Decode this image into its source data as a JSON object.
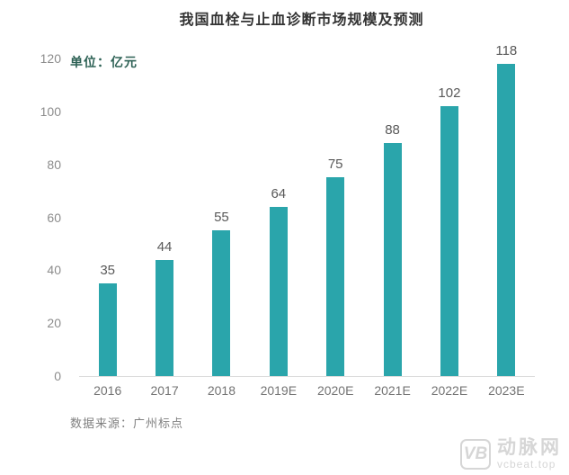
{
  "title": "我国血栓与止血诊断市场规模及预测",
  "unit_label": "单位：亿元",
  "source": "数据来源：广州标点",
  "watermark": {
    "logo": "VB",
    "brand": "动脉网",
    "site": "vcbeat.top"
  },
  "colors": {
    "bg": "#ffffff",
    "bar": "#2aa5ab",
    "title": "#333333",
    "unit": "#2d6155",
    "tick": "#8c8c8c",
    "value": "#595959",
    "xlabel": "#737373",
    "axis": "#dcdcdc",
    "source": "#808080",
    "watermark": "#d6d6d6"
  },
  "chart_data": {
    "type": "bar",
    "categories": [
      "2016",
      "2017",
      "2018",
      "2019E",
      "2020E",
      "2021E",
      "2022E",
      "2023E"
    ],
    "values": [
      35,
      44,
      55,
      64,
      75,
      88,
      102,
      118
    ],
    "title": "我国血栓与止血诊断市场规模及预测",
    "xlabel": "",
    "ylabel": "单位：亿元",
    "ylim": [
      0,
      120
    ],
    "yticks": [
      0,
      20,
      40,
      60,
      80,
      100,
      120
    ],
    "grid": false,
    "legend": false,
    "value_labels": true
  }
}
